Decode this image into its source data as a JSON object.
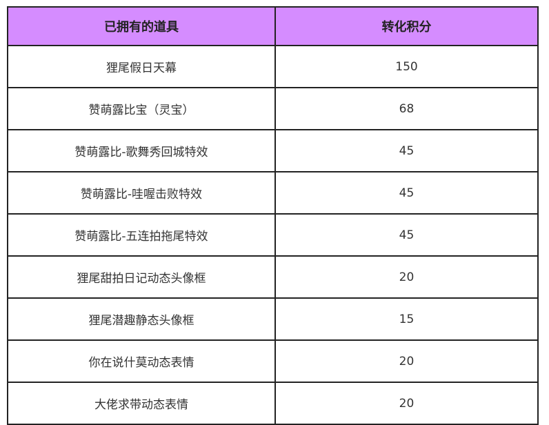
{
  "table": {
    "headers": [
      "已拥有的道具",
      "转化积分"
    ],
    "rows": [
      [
        "狸尾假日天幕",
        "150"
      ],
      [
        "赞萌露比宝（灵宝）",
        "68"
      ],
      [
        "赞萌露比-歌舞秀回城特效",
        "45"
      ],
      [
        "赞萌露比-哇喔击败特效",
        "45"
      ],
      [
        "赞萌露比-五连拍拖尾特效",
        "45"
      ],
      [
        "狸尾甜拍日记动态头像框",
        "20"
      ],
      [
        "狸尾潜趣静态头像框",
        "15"
      ],
      [
        "你在说什莫动态表情",
        "20"
      ],
      [
        "大佬求带动态表情",
        "20"
      ]
    ]
  },
  "colors": {
    "header": "#d58cff"
  }
}
